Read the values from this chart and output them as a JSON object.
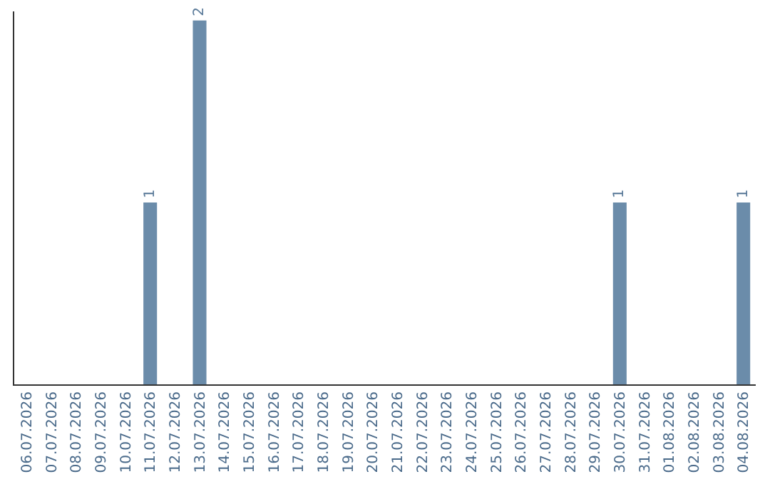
{
  "chart_data": {
    "type": "bar",
    "categories": [
      "06.07.2026",
      "07.07.2026",
      "08.07.2026",
      "09.07.2026",
      "10.07.2026",
      "11.07.2026",
      "12.07.2026",
      "13.07.2026",
      "14.07.2026",
      "15.07.2026",
      "16.07.2026",
      "17.07.2026",
      "18.07.2026",
      "19.07.2026",
      "20.07.2026",
      "21.07.2026",
      "22.07.2026",
      "23.07.2026",
      "24.07.2026",
      "25.07.2026",
      "26.07.2026",
      "27.07.2026",
      "28.07.2026",
      "29.07.2026",
      "30.07.2026",
      "31.07.2026",
      "01.08.2026",
      "02.08.2026",
      "03.08.2026",
      "04.08.2026"
    ],
    "values": [
      0,
      0,
      0,
      0,
      0,
      1,
      0,
      2,
      0,
      0,
      0,
      0,
      0,
      0,
      0,
      0,
      0,
      0,
      0,
      0,
      0,
      0,
      0,
      0,
      1,
      0,
      0,
      0,
      0,
      1
    ],
    "value_labels": [
      null,
      null,
      null,
      null,
      null,
      "1",
      null,
      "2",
      null,
      null,
      null,
      null,
      null,
      null,
      null,
      null,
      null,
      null,
      null,
      null,
      null,
      null,
      null,
      null,
      "1",
      null,
      null,
      null,
      null,
      "1"
    ],
    "color": "#6b8caa",
    "ylim": [
      0,
      2.05
    ],
    "tick_labels": "x",
    "legend": false
  }
}
